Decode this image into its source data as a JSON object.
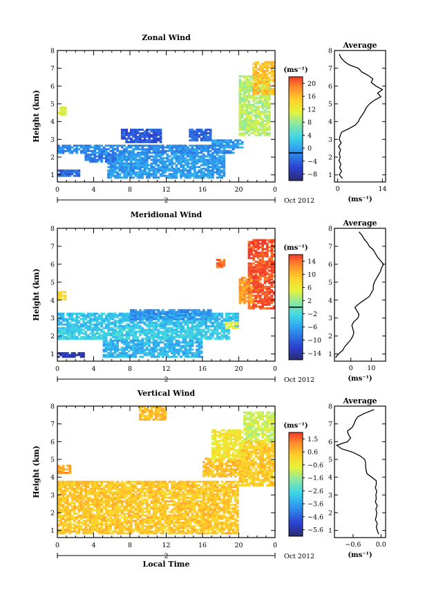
{
  "chart_data": [
    {
      "type": "heatmap",
      "title": "Zonal Wind",
      "ylabel": "Height (km)",
      "x_ticks": [
        "0",
        "4",
        "8",
        "12",
        "16",
        "20",
        "0"
      ],
      "y_ticks": [
        "1",
        "2",
        "3",
        "4",
        "5",
        "6",
        "7",
        "8"
      ],
      "xlim": [
        0,
        24
      ],
      "ylim": [
        0.6,
        8
      ],
      "date_marker": "2",
      "date_label": "Oct 2012",
      "colorbar": {
        "unit": "(ms⁻¹)",
        "ticks": [
          "20",
          "16",
          "12",
          "8",
          "4",
          "0",
          "−4",
          "−8"
        ],
        "range": [
          -8,
          22
        ],
        "zero_line": 0
      },
      "regions": [
        {
          "x0": 0,
          "x1": 1,
          "y0": 4.35,
          "y1": 4.8,
          "v": 12
        },
        {
          "x0": 0,
          "x1": 19.5,
          "y0": 2.2,
          "y1": 2.65,
          "v": 0
        },
        {
          "x0": 0,
          "x1": 2.5,
          "y0": 0.9,
          "y1": 1.3,
          "v": -2
        },
        {
          "x0": 5.5,
          "x1": 18.5,
          "y0": 0.8,
          "y1": 2.2,
          "v": 1
        },
        {
          "x0": 3,
          "x1": 6.5,
          "y0": 1.7,
          "y1": 2.2,
          "v": -1
        },
        {
          "x0": 7,
          "x1": 11.5,
          "y0": 2.8,
          "y1": 3.6,
          "v": -3
        },
        {
          "x0": 14.5,
          "x1": 17,
          "y0": 2.9,
          "y1": 3.6,
          "v": -2
        },
        {
          "x0": 17,
          "x1": 20.5,
          "y0": 2.5,
          "y1": 3.0,
          "v": 1
        },
        {
          "x0": 20,
          "x1": 23.5,
          "y0": 3.2,
          "y1": 6.5,
          "v": 10
        },
        {
          "x0": 21.5,
          "x1": 24,
          "y0": 5.5,
          "y1": 7.3,
          "v": 16
        }
      ],
      "profile": {
        "title": "Average",
        "xlabel": "(ms⁻¹)",
        "x_ticks": [
          "0",
          "14"
        ],
        "xlim": [
          -1,
          15
        ],
        "height": [
          0.8,
          1.0,
          1.2,
          1.4,
          1.6,
          1.8,
          2.0,
          2.2,
          2.4,
          2.6,
          2.8,
          3.0,
          3.2,
          3.4,
          3.6,
          3.8,
          4.0,
          4.2,
          4.4,
          4.6,
          4.8,
          5.0,
          5.2,
          5.4,
          5.6,
          5.8,
          6.0,
          6.2,
          6.4,
          6.6,
          6.8,
          7.0,
          7.2,
          7.4,
          7.6,
          7.8
        ],
        "value": [
          1.5,
          0.5,
          1.2,
          0.6,
          1.0,
          0.4,
          0.8,
          0.5,
          0.9,
          0.3,
          1.1,
          0.5,
          0.8,
          1.2,
          3.5,
          5.5,
          6.5,
          7.0,
          7.8,
          8.5,
          9.0,
          10.0,
          11.5,
          13.5,
          12.5,
          14.0,
          12.0,
          10.5,
          11.0,
          9.5,
          7.5,
          6.5,
          3.5,
          2.0,
          1.0,
          0.5
        ]
      }
    },
    {
      "type": "heatmap",
      "title": "Meridional Wind",
      "ylabel": "Height (km)",
      "x_ticks": [
        "0",
        "4",
        "8",
        "12",
        "16",
        "20",
        "0"
      ],
      "y_ticks": [
        "1",
        "2",
        "3",
        "4",
        "5",
        "6",
        "7",
        "8"
      ],
      "xlim": [
        0,
        24
      ],
      "ylim": [
        0.6,
        8
      ],
      "date_marker": "2",
      "date_label": "Oct 2012",
      "colorbar": {
        "unit": "(ms⁻¹)",
        "ticks": [
          "14",
          "10",
          "6",
          "2",
          "−2",
          "−6",
          "−10",
          "−14"
        ],
        "range": [
          -16,
          16
        ],
        "zero_line": 0
      },
      "regions": [
        {
          "x0": 0,
          "x1": 1,
          "y0": 4.0,
          "y1": 4.4,
          "v": 8
        },
        {
          "x0": 0,
          "x1": 20,
          "y0": 2.5,
          "y1": 3.3,
          "v": -4
        },
        {
          "x0": 0,
          "x1": 19,
          "y0": 1.8,
          "y1": 2.5,
          "v": -3
        },
        {
          "x0": 5,
          "x1": 16,
          "y0": 0.8,
          "y1": 1.8,
          "v": -5
        },
        {
          "x0": 0,
          "x1": 3,
          "y0": 0.8,
          "y1": 1.1,
          "v": -13
        },
        {
          "x0": 8,
          "x1": 17,
          "y0": 2.9,
          "y1": 3.5,
          "v": -7
        },
        {
          "x0": 18.5,
          "x1": 20,
          "y0": 2.4,
          "y1": 2.8,
          "v": 6
        },
        {
          "x0": 17.5,
          "x1": 18.5,
          "y0": 5.8,
          "y1": 6.2,
          "v": 14
        },
        {
          "x0": 21,
          "x1": 24,
          "y0": 3.5,
          "y1": 7.3,
          "v": 15
        },
        {
          "x0": 20,
          "x1": 21.5,
          "y0": 3.8,
          "y1": 5.2,
          "v": 12
        }
      ],
      "profile": {
        "title": "Average",
        "xlabel": "(ms⁻¹)",
        "x_ticks": [
          "0",
          "10"
        ],
        "xlim": [
          -8,
          17
        ],
        "height": [
          0.8,
          1.0,
          1.2,
          1.4,
          1.6,
          1.8,
          2.0,
          2.2,
          2.4,
          2.6,
          2.8,
          3.0,
          3.2,
          3.4,
          3.6,
          3.8,
          4.0,
          4.2,
          4.4,
          4.6,
          4.8,
          5.0,
          5.2,
          5.4,
          5.6,
          5.8,
          6.0,
          6.2,
          6.4,
          6.6,
          6.8,
          7.0,
          7.2,
          7.4,
          7.6,
          7.8
        ],
        "value": [
          -7.5,
          -6.0,
          -4.0,
          -3.0,
          -1.5,
          0.0,
          1.0,
          1.5,
          1.0,
          0.5,
          1.5,
          3.5,
          4.0,
          3.0,
          2.0,
          4.0,
          6.5,
          9.0,
          10.0,
          11.0,
          11.0,
          11.5,
          12.5,
          13.5,
          14.5,
          15.0,
          16.0,
          14.5,
          13.0,
          12.0,
          11.0,
          9.0,
          8.0,
          6.5,
          5.5,
          4.0
        ]
      }
    },
    {
      "type": "heatmap",
      "title": "Vertical Wind",
      "ylabel": "Height (km)",
      "xlabel": "Local Time",
      "x_ticks": [
        "0",
        "4",
        "8",
        "12",
        "16",
        "20",
        "0"
      ],
      "y_ticks": [
        "1",
        "2",
        "3",
        "4",
        "5",
        "6",
        "7",
        "8"
      ],
      "xlim": [
        0,
        24
      ],
      "ylim": [
        0.6,
        8
      ],
      "date_marker": "2",
      "date_label": "Oct 2012",
      "colorbar": {
        "unit": "(ms⁻¹)",
        "ticks": [
          "1.5",
          "0.6",
          "−0.6",
          "−1.6",
          "−2.6",
          "−3.6",
          "−4.6",
          "−5.6"
        ],
        "range": [
          -6.1,
          2.0
        ],
        "zero_line": null
      },
      "regions": [
        {
          "x0": 0,
          "x1": 20,
          "y0": 0.8,
          "y1": 3.8,
          "v": 0.3
        },
        {
          "x0": 0,
          "x1": 1.5,
          "y0": 4.2,
          "y1": 4.6,
          "v": 0.8
        },
        {
          "x0": 16,
          "x1": 21,
          "y0": 4.0,
          "y1": 5.0,
          "v": 0.4
        },
        {
          "x0": 20,
          "x1": 24,
          "y0": 3.5,
          "y1": 6.0,
          "v": 0.2
        },
        {
          "x0": 17,
          "x1": 20.5,
          "y0": 5.0,
          "y1": 6.6,
          "v": -0.4
        },
        {
          "x0": 20.5,
          "x1": 24,
          "y0": 6.0,
          "y1": 7.6,
          "v": -1.0
        },
        {
          "x0": 9,
          "x1": 12,
          "y0": 7.2,
          "y1": 8.0,
          "v": 0.5
        }
      ],
      "profile": {
        "title": "Average",
        "xlabel": "(ms⁻¹)",
        "x_ticks": [
          "−0.6",
          "0.0"
        ],
        "xlim": [
          -1.0,
          0.1
        ],
        "height": [
          0.8,
          1.0,
          1.2,
          1.4,
          1.6,
          1.8,
          2.0,
          2.2,
          2.4,
          2.6,
          2.8,
          3.0,
          3.2,
          3.4,
          3.6,
          3.8,
          4.0,
          4.2,
          4.4,
          4.6,
          4.8,
          5.0,
          5.2,
          5.4,
          5.6,
          5.8,
          6.0,
          6.2,
          6.4,
          6.6,
          6.8,
          7.0,
          7.2,
          7.4,
          7.6,
          7.8
        ],
        "value": [
          -0.05,
          -0.08,
          -0.1,
          -0.08,
          -0.12,
          -0.1,
          -0.09,
          -0.11,
          -0.08,
          -0.12,
          -0.1,
          -0.11,
          -0.09,
          -0.12,
          -0.1,
          -0.1,
          -0.2,
          -0.3,
          -0.32,
          -0.33,
          -0.33,
          -0.35,
          -0.45,
          -0.6,
          -0.85,
          -0.95,
          -0.72,
          -0.65,
          -0.7,
          -0.72,
          -0.62,
          -0.58,
          -0.55,
          -0.5,
          -0.35,
          -0.15
        ]
      }
    }
  ]
}
